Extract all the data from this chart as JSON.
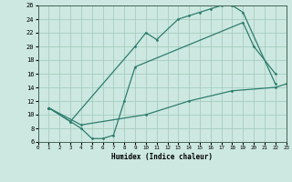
{
  "line_upper_x": [
    1,
    3,
    9,
    10,
    11,
    13,
    14,
    15,
    16,
    17,
    18,
    19,
    22
  ],
  "line_upper_y": [
    11,
    9,
    20,
    22,
    21,
    24,
    24.5,
    25,
    25.5,
    26,
    26,
    25,
    14.5
  ],
  "line_mid_x": [
    1,
    3,
    4,
    5,
    6,
    7,
    8,
    9,
    19,
    20,
    22
  ],
  "line_mid_y": [
    11,
    9,
    8,
    6.5,
    6.5,
    7,
    12,
    17,
    23.5,
    20,
    16
  ],
  "line_bot_x": [
    1,
    4,
    10,
    14,
    18,
    22,
    23
  ],
  "line_bot_y": [
    11,
    8.5,
    10,
    12,
    13.5,
    14,
    14.5
  ],
  "color": "#2e7d6e",
  "bg_color": "#cce8e0",
  "grid_color": "#a0c8b8",
  "xlabel": "Humidex (Indice chaleur)",
  "xlim": [
    0,
    23
  ],
  "ylim": [
    6,
    26
  ],
  "xticks": [
    0,
    1,
    2,
    3,
    4,
    5,
    6,
    7,
    8,
    9,
    10,
    11,
    12,
    13,
    14,
    15,
    16,
    17,
    18,
    19,
    20,
    21,
    22,
    23
  ],
  "yticks": [
    6,
    8,
    10,
    12,
    14,
    16,
    18,
    20,
    22,
    24,
    26
  ]
}
